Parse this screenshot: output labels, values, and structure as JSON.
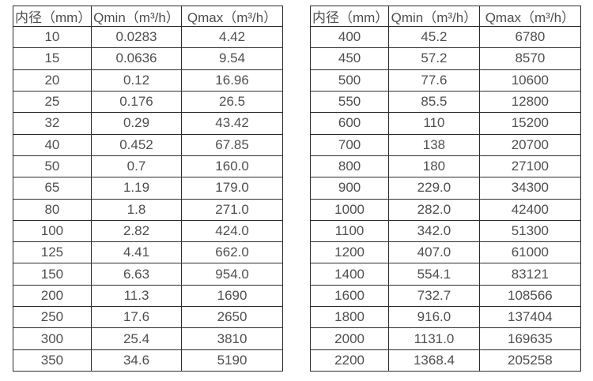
{
  "page": {
    "background_color": "#ffffff",
    "text_color": "#4f4f4f",
    "border_color": "#2c2c2c"
  },
  "chart_data": [
    {
      "type": "table",
      "columns": [
        "内径（mm）",
        "Qmin（m³/h）",
        "Qmax（m³/h）"
      ],
      "rows": [
        [
          "10",
          "0.0283",
          "4.42"
        ],
        [
          "15",
          "0.0636",
          "9.54"
        ],
        [
          "20",
          "0.12",
          "16.96"
        ],
        [
          "25",
          "0.176",
          "26.5"
        ],
        [
          "32",
          "0.29",
          "43.42"
        ],
        [
          "40",
          "0.452",
          "67.85"
        ],
        [
          "50",
          "0.7",
          "160.0"
        ],
        [
          "65",
          "1.19",
          "179.0"
        ],
        [
          "80",
          "1.8",
          "271.0"
        ],
        [
          "100",
          "2.82",
          "424.0"
        ],
        [
          "125",
          "4.41",
          "662.0"
        ],
        [
          "150",
          "6.63",
          "954.0"
        ],
        [
          "200",
          "11.3",
          "1690"
        ],
        [
          "250",
          "17.6",
          "2650"
        ],
        [
          "300",
          "25.4",
          "3810"
        ],
        [
          "350",
          "34.6",
          "5190"
        ]
      ]
    },
    {
      "type": "table",
      "columns": [
        "内径（mm）",
        "Qmin（m³/h）",
        "Qmax（m³/h）"
      ],
      "rows": [
        [
          "400",
          "45.2",
          "6780"
        ],
        [
          "450",
          "57.2",
          "8570"
        ],
        [
          "500",
          "77.6",
          "10600"
        ],
        [
          "550",
          "85.5",
          "12800"
        ],
        [
          "600",
          "110",
          "15200"
        ],
        [
          "700",
          "138",
          "20700"
        ],
        [
          "800",
          "180",
          "27100"
        ],
        [
          "900",
          "229.0",
          "34300"
        ],
        [
          "1000",
          "282.0",
          "42400"
        ],
        [
          "1100",
          "342.0",
          "51300"
        ],
        [
          "1200",
          "407.0",
          "61000"
        ],
        [
          "1400",
          "554.1",
          "83121"
        ],
        [
          "1600",
          "732.7",
          "108566"
        ],
        [
          "1800",
          "916.0",
          "137404"
        ],
        [
          "2000",
          "1131.0",
          "169635"
        ],
        [
          "2200",
          "1368.4",
          "205258"
        ]
      ]
    }
  ]
}
